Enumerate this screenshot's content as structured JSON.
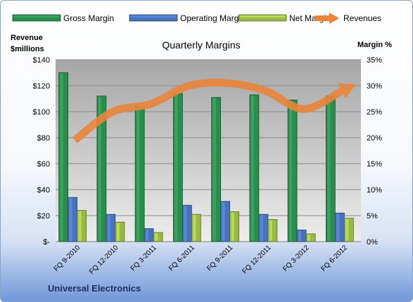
{
  "footer_title": "Universal Electronics",
  "chart_data": {
    "type": "bar",
    "title": "Quarterly Margins",
    "left_axis": {
      "label_line1": "Revenue",
      "label_line2": "$millions",
      "min": 0,
      "max": 140,
      "step": 20,
      "ticks": [
        "$-",
        "$20",
        "$40",
        "$60",
        "$80",
        "$100",
        "$120",
        "$140"
      ]
    },
    "right_axis": {
      "label": "Margin %",
      "min": 0,
      "max": 35,
      "step": 5,
      "ticks": [
        "0%",
        "5%",
        "10%",
        "15%",
        "20%",
        "25%",
        "30%",
        "35%"
      ]
    },
    "categories": [
      "FQ 9-2010",
      "FQ 12-2010",
      "FQ 3-2011",
      "FQ 6-2011",
      "FQ 9-2011",
      "FQ 12-2011",
      "FQ 3-2012",
      "FQ 6-2012"
    ],
    "series": [
      {
        "name": "Gross Margin",
        "type": "bar",
        "axis": "left",
        "color": "#2e8b4e",
        "values": [
          130,
          112,
          104,
          114,
          111,
          113,
          109,
          112
        ]
      },
      {
        "name": "Operating Margin",
        "type": "bar",
        "axis": "left",
        "color": "#4a72b8",
        "values": [
          34,
          21,
          10,
          28,
          31,
          21,
          9,
          22
        ]
      },
      {
        "name": "Net Margin",
        "type": "bar",
        "axis": "left",
        "color": "#9ab84a",
        "values": [
          24,
          15,
          7,
          21,
          23,
          17,
          6,
          18
        ]
      },
      {
        "name": "Revenues",
        "type": "line",
        "axis": "right",
        "color": "#e9853a",
        "values": [
          19.5,
          25.0,
          26.5,
          30.0,
          30.5,
          29.0,
          25.5,
          29.0
        ]
      }
    ],
    "legend_position": "top",
    "grid": true
  }
}
